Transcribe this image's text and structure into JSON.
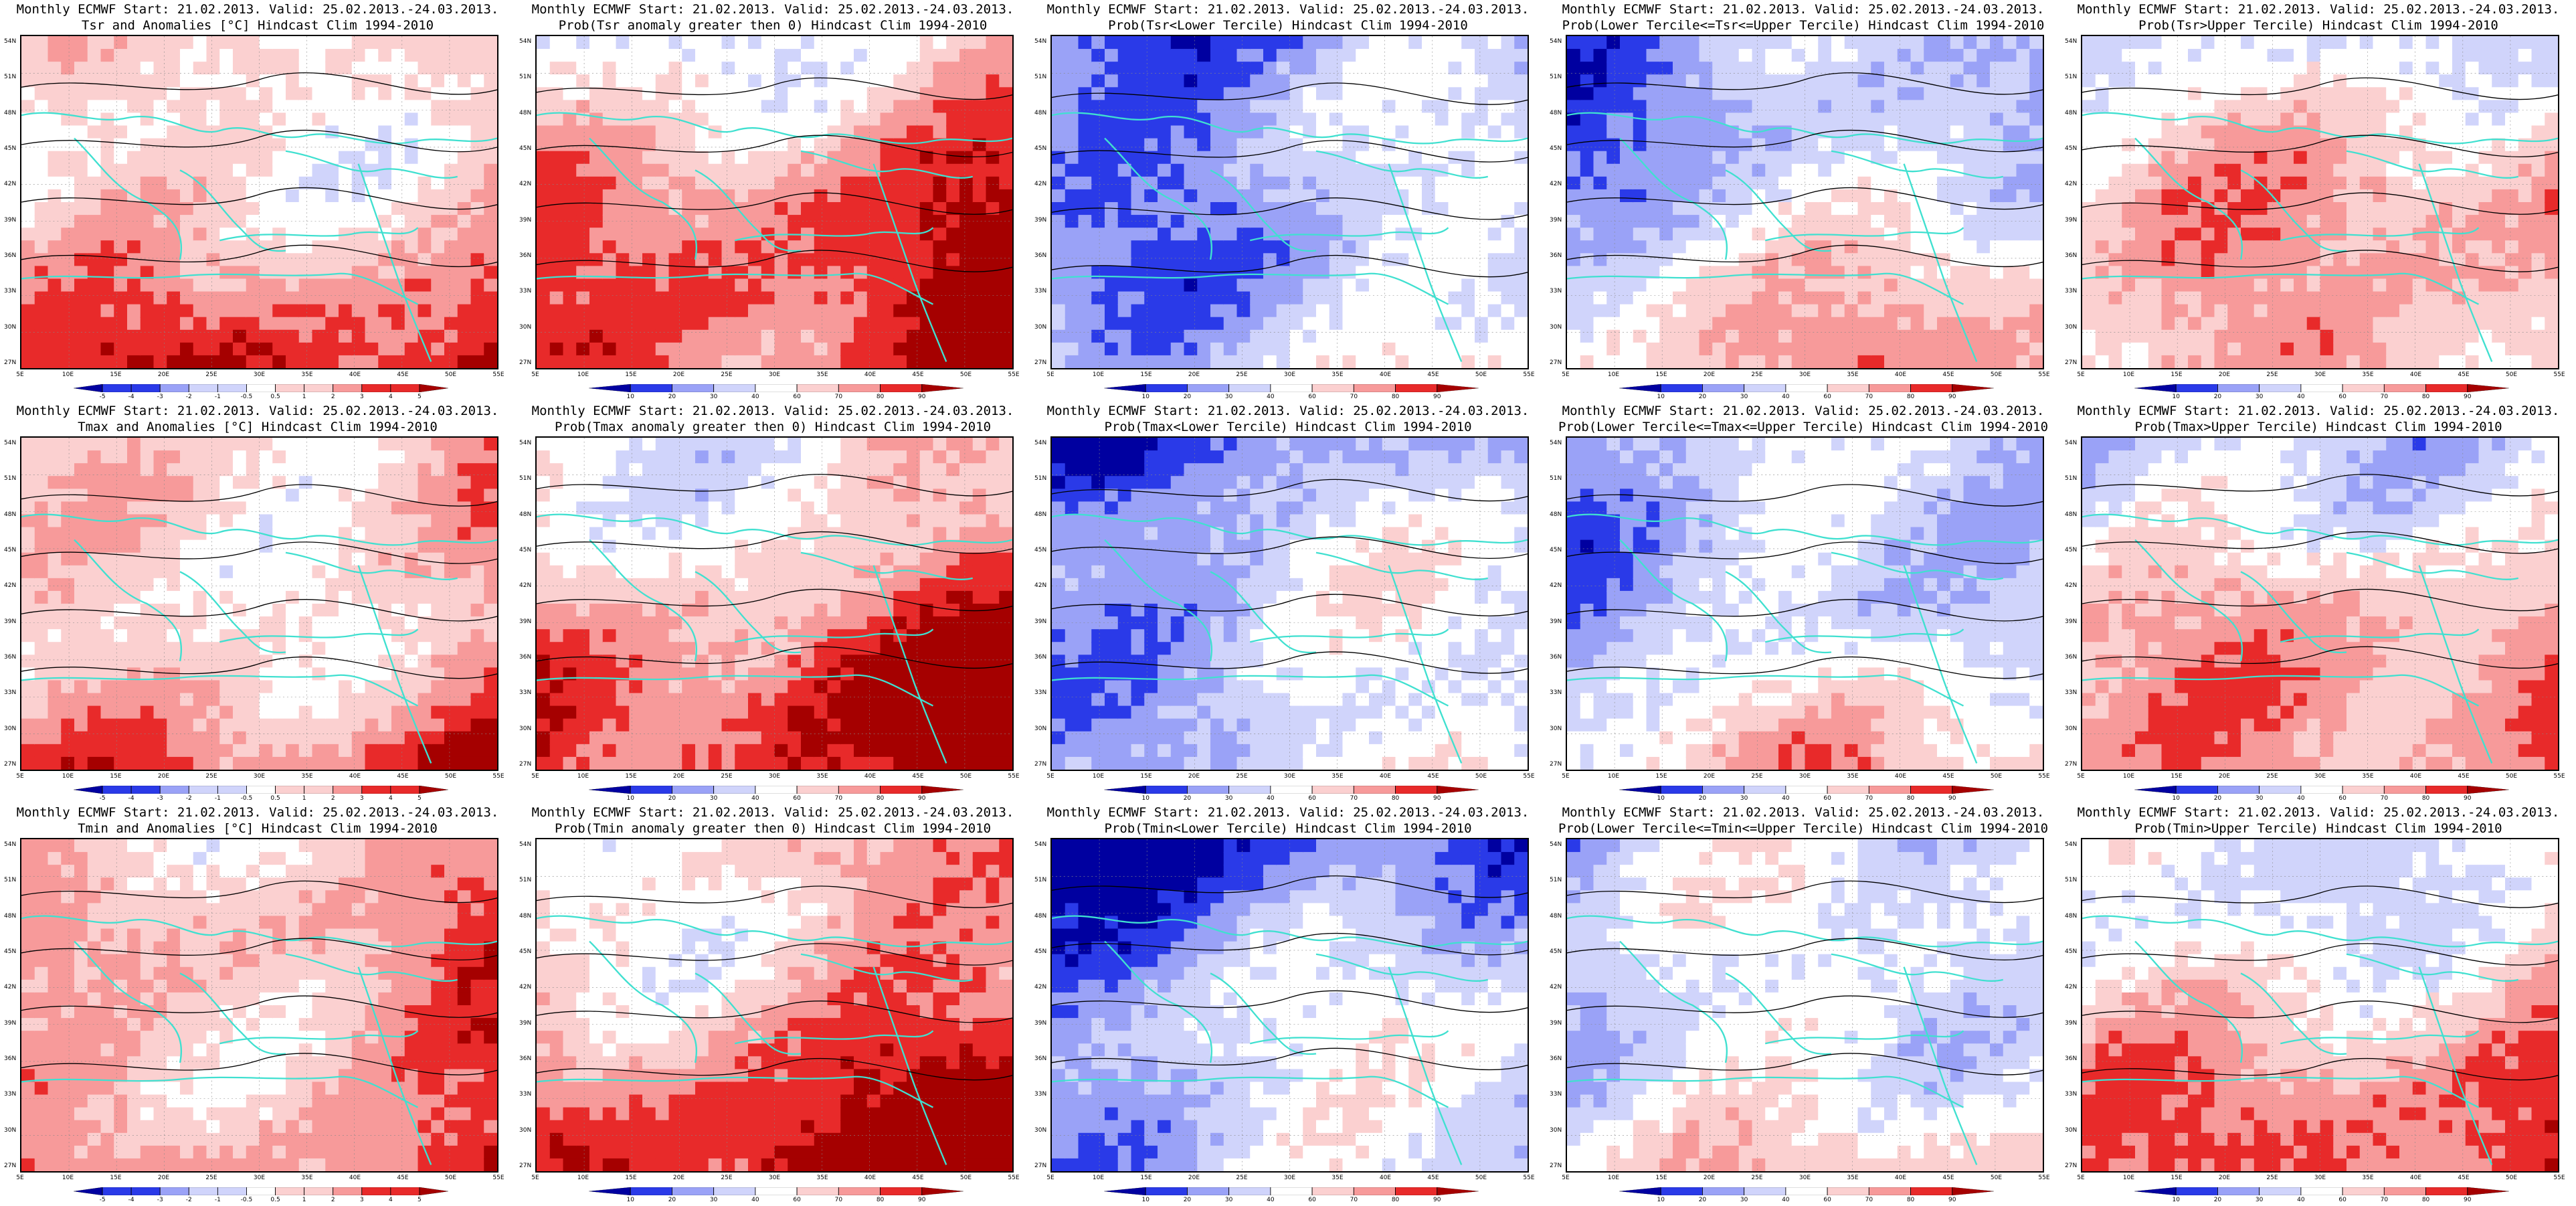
{
  "page": {
    "colors": {
      "deep_red": "#a50000",
      "red": "#e82a2a",
      "light_red": "#f79a9a",
      "pale_red": "#fbd0d0",
      "white": "#ffffff",
      "pale_blue": "#d0d4fb",
      "light_blue": "#9aa2f7",
      "blue": "#2a3ae8",
      "deep_blue": "#0000a0",
      "coast": "#40e0d0",
      "contour": "#000000"
    }
  },
  "axes": {
    "lat_ticks": [
      "54N",
      "51N",
      "48N",
      "45N",
      "42N",
      "39N",
      "36N",
      "33N",
      "30N",
      "27N"
    ],
    "lon_ticks": [
      "5E",
      "10E",
      "15E",
      "20E",
      "25E",
      "30E",
      "35E",
      "40E",
      "45E",
      "50E",
      "55E"
    ]
  },
  "colorbars": {
    "anomaly": [
      "-5",
      "-4",
      "-3",
      "-2",
      "-1",
      "-0.5",
      "0.5",
      "1",
      "2",
      "3",
      "4",
      "5"
    ],
    "probability": [
      "10",
      "20",
      "30",
      "40",
      "60",
      "70",
      "80",
      "90"
    ]
  },
  "panels": [
    {
      "line1": "Monthly ECMWF Start: 21.02.2013. Valid: 25.02.2013.-24.03.2013.",
      "line2": "Tsr and Anomalies [°C] Hindcast Clim 1994-2010",
      "scheme": "anomaly",
      "bias": 0.35
    },
    {
      "line1": "Monthly ECMWF Start: 21.02.2013. Valid: 25.02.2013.-24.03.2013.",
      "line2": "Prob(Tsr anomaly greater then 0) Hindcast Clim 1994-2010",
      "scheme": "probability",
      "bias": 0.55
    },
    {
      "line1": "Monthly ECMWF Start: 21.02.2013. Valid: 25.02.2013.-24.03.2013.",
      "line2": "Prob(Tsr<Lower Tercile) Hindcast Clim 1994-2010",
      "scheme": "probability",
      "bias": -0.75
    },
    {
      "line1": "Monthly ECMWF Start: 21.02.2013. Valid: 25.02.2013.-24.03.2013.",
      "line2": "Prob(Lower Tercile<=Tsr<=Upper Tercile) Hindcast Clim 1994-2010",
      "scheme": "probability",
      "bias": -0.35
    },
    {
      "line1": "Monthly ECMWF Start: 21.02.2013. Valid: 25.02.2013.-24.03.2013.",
      "line2": "Prob(Tsr>Upper Tercile) Hindcast Clim 1994-2010",
      "scheme": "probability",
      "bias": 0.15
    },
    {
      "line1": "Monthly ECMWF Start: 21.02.2013. Valid: 25.02.2013.-24.03.2013.",
      "line2": "Tmax and Anomalies [°C] Hindcast Clim 1994-2010",
      "scheme": "anomaly",
      "bias": 0.3
    },
    {
      "line1": "Monthly ECMWF Start: 21.02.2013. Valid: 25.02.2013.-24.03.2013.",
      "line2": "Prob(Tmax anomaly greater then 0) Hindcast Clim 1994-2010",
      "scheme": "probability",
      "bias": 0.5
    },
    {
      "line1": "Monthly ECMWF Start: 21.02.2013. Valid: 25.02.2013.-24.03.2013.",
      "line2": "Prob(Tmax<Lower Tercile) Hindcast Clim 1994-2010",
      "scheme": "probability",
      "bias": -0.7
    },
    {
      "line1": "Monthly ECMWF Start: 21.02.2013. Valid: 25.02.2013.-24.03.2013.",
      "line2": "Prob(Lower Tercile<=Tmax<=Upper Tercile) Hindcast Clim 1994-2010",
      "scheme": "probability",
      "bias": -0.4
    },
    {
      "line1": "Monthly ECMWF Start: 21.02.2013. Valid: 25.02.2013.-24.03.2013.",
      "line2": "Prob(Tmax>Upper Tercile) Hindcast Clim 1994-2010",
      "scheme": "probability",
      "bias": 0.1
    },
    {
      "line1": "Monthly ECMWF Start: 21.02.2013. Valid: 25.02.2013.-24.03.2013.",
      "line2": "Tmin and Anomalies [°C] Hindcast Clim 1994-2010",
      "scheme": "anomaly",
      "bias": 0.4
    },
    {
      "line1": "Monthly ECMWF Start: 21.02.2013. Valid: 25.02.2013.-24.03.2013.",
      "line2": "Prob(Tmin anomaly greater then 0) Hindcast Clim 1994-2010",
      "scheme": "probability",
      "bias": 0.6
    },
    {
      "line1": "Monthly ECMWF Start: 21.02.2013. Valid: 25.02.2013.-24.03.2013.",
      "line2": "Prob(Tmin<Lower Tercile) Hindcast Clim 1994-2010",
      "scheme": "probability",
      "bias": -0.8
    },
    {
      "line1": "Monthly ECMWF Start: 21.02.2013. Valid: 25.02.2013.-24.03.2013.",
      "line2": "Prob(Lower Tercile<=Tmin<=Upper Tercile) Hindcast Clim 1994-2010",
      "scheme": "probability",
      "bias": -0.3
    },
    {
      "line1": "Monthly ECMWF Start: 21.02.2013. Valid: 25.02.2013.-24.03.2013.",
      "line2": "Prob(Tmin>Upper Tercile) Hindcast Clim 1994-2010",
      "scheme": "probability",
      "bias": 0.2
    }
  ]
}
